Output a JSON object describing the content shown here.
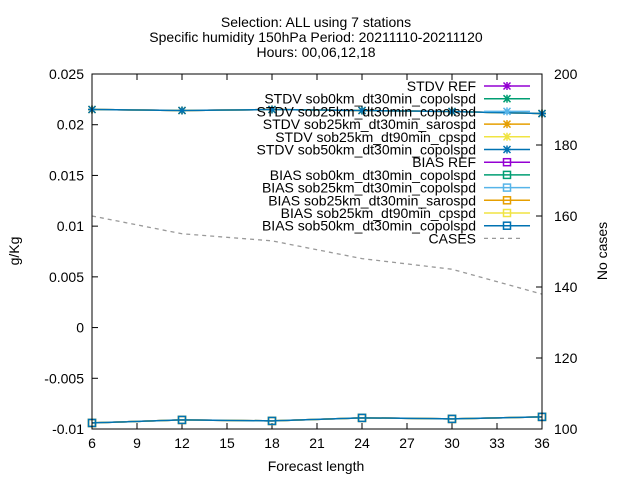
{
  "chart_data": {
    "type": "line",
    "title_lines": [
      "Selection: ALL using     7 stations",
      "Specific humidity 150hPa   Period: 20211110-20211120",
      "Hours: 00,06,12,18"
    ],
    "xlabel": "Forecast length",
    "ylabel": "g/Kg",
    "y2label": "No cases",
    "xlim": [
      6,
      36
    ],
    "ylim": [
      -0.01,
      0.025
    ],
    "y2lim": [
      100,
      200
    ],
    "x_ticks": [
      "6",
      "9",
      "12",
      "15",
      "18",
      "21",
      "24",
      "27",
      "30",
      "33",
      "36"
    ],
    "y_ticks": [
      "-0.01",
      "-0.005",
      "0",
      "0.005",
      "0.01",
      "0.015",
      "0.02",
      "0.025"
    ],
    "y2_ticks": [
      "100",
      "120",
      "140",
      "160",
      "180",
      "200"
    ],
    "x": [
      6,
      12,
      18,
      24,
      30,
      36
    ],
    "legend_position": "top-right",
    "series": [
      {
        "name": "STDV REF",
        "group": "stdv",
        "color": "#9400d3",
        "marker": "star",
        "values": [
          0.0215,
          0.0214,
          0.0215,
          0.0214,
          0.0213,
          0.0211
        ]
      },
      {
        "name": "STDV sob0km_dt30min_copolspd",
        "group": "stdv",
        "color": "#009e73",
        "marker": "star",
        "values": [
          0.0215,
          0.0214,
          0.0215,
          0.0214,
          0.0213,
          0.0211
        ]
      },
      {
        "name": "STDV sob25km_dt30min_copolspd",
        "group": "stdv",
        "color": "#56b4e9",
        "marker": "star",
        "values": [
          0.0215,
          0.0214,
          0.0215,
          0.0214,
          0.0213,
          0.0211
        ]
      },
      {
        "name": "STDV sob25km_dt30min_sarospd",
        "group": "stdv",
        "color": "#e69f00",
        "marker": "star",
        "values": [
          0.0215,
          0.0214,
          0.0215,
          0.0214,
          0.0213,
          0.0211
        ]
      },
      {
        "name": "STDV sob25km_dt90min_cpspd",
        "group": "stdv",
        "color": "#f0e442",
        "marker": "star",
        "values": [
          0.0215,
          0.0214,
          0.0215,
          0.0214,
          0.0213,
          0.0211
        ]
      },
      {
        "name": "STDV sob50km_dt30min_copolspd",
        "group": "stdv",
        "color": "#0072b2",
        "marker": "star",
        "values": [
          0.0215,
          0.0214,
          0.0215,
          0.0214,
          0.0213,
          0.0211
        ]
      },
      {
        "name": "BIAS REF",
        "group": "bias",
        "color": "#9400d3",
        "marker": "square",
        "values": [
          -0.0094,
          -0.0091,
          -0.0092,
          -0.0089,
          -0.009,
          -0.0088
        ]
      },
      {
        "name": "BIAS sob0km_dt30min_copolspd",
        "group": "bias",
        "color": "#009e73",
        "marker": "square",
        "values": [
          -0.0094,
          -0.0091,
          -0.0092,
          -0.0089,
          -0.009,
          -0.0088
        ]
      },
      {
        "name": "BIAS sob25km_dt30min_copolspd",
        "group": "bias",
        "color": "#56b4e9",
        "marker": "square",
        "values": [
          -0.0094,
          -0.0091,
          -0.0092,
          -0.0089,
          -0.009,
          -0.0088
        ]
      },
      {
        "name": "BIAS sob25km_dt30min_sarospd",
        "group": "bias",
        "color": "#e69f00",
        "marker": "square",
        "values": [
          -0.0094,
          -0.0091,
          -0.0092,
          -0.0089,
          -0.009,
          -0.0088
        ]
      },
      {
        "name": "BIAS sob25km_dt90min_cpspd",
        "group": "bias",
        "color": "#f0e442",
        "marker": "square",
        "values": [
          -0.0094,
          -0.0091,
          -0.0092,
          -0.0089,
          -0.009,
          -0.0088
        ]
      },
      {
        "name": "BIAS sob50km_dt30min_copolspd",
        "group": "bias",
        "color": "#0072b2",
        "marker": "square",
        "values": [
          -0.0094,
          -0.0091,
          -0.0092,
          -0.0089,
          -0.009,
          -0.0088
        ]
      }
    ],
    "cases": {
      "name": "CASES",
      "axis": "y2",
      "color": "#999999",
      "style": "dashed",
      "x": [
        6,
        12,
        18,
        24,
        30,
        36
      ],
      "values": [
        160,
        155,
        153,
        148,
        145,
        138
      ]
    }
  }
}
